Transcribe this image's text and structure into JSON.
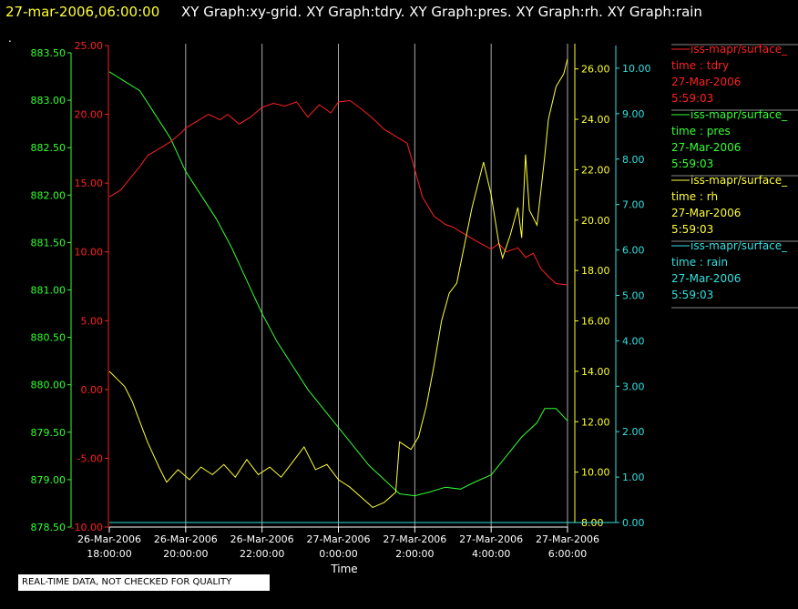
{
  "header": {
    "timestamp": "27-mar-2006,06:00:00",
    "titles": "XY Graph:xy-grid.  XY Graph:tdry.  XY Graph:pres.  XY Graph:rh.  XY Graph:rain",
    "dot": "."
  },
  "footer": {
    "quality_note": "REAL-TIME DATA, NOT CHECKED FOR QUALITY"
  },
  "colors": {
    "tdry": "#ff2020",
    "pres": "#33ff33",
    "rh": "#ffff33",
    "rain": "#33e0e0",
    "grid": "#aaaaaa",
    "background": "#000000"
  },
  "chart_data": {
    "type": "line",
    "xlabel": "Time",
    "x_ticks": [
      {
        "date": "26-Mar-2006",
        "time": "18:00:00"
      },
      {
        "date": "26-Mar-2006",
        "time": "20:00:00"
      },
      {
        "date": "26-Mar-2006",
        "time": "22:00:00"
      },
      {
        "date": "27-Mar-2006",
        "time": "0:00:00"
      },
      {
        "date": "27-Mar-2006",
        "time": "2:00:00"
      },
      {
        "date": "27-Mar-2006",
        "time": "4:00:00"
      },
      {
        "date": "27-Mar-2006",
        "time": "6:00:00"
      }
    ],
    "x_hours": [
      0,
      2,
      4,
      6,
      8,
      10,
      12
    ],
    "axes": {
      "pres": {
        "ylim": [
          878.5,
          883.5
        ],
        "ticks": [
          "878.50",
          "879.00",
          "879.50",
          "880.00",
          "880.50",
          "881.00",
          "881.50",
          "882.00",
          "882.50",
          "883.00",
          "883.50"
        ]
      },
      "tdry": {
        "ylim": [
          -10,
          25
        ],
        "ticks": [
          "-10.00",
          "-5.00",
          "0.00",
          "5.00",
          "10.00",
          "15.00",
          "20.00",
          "25.00"
        ]
      },
      "rh": {
        "ylim": [
          8,
          27
        ],
        "ticks": [
          "8.00",
          "10.00",
          "12.00",
          "14.00",
          "16.00",
          "18.00",
          "20.00",
          "22.00",
          "24.00",
          "26.00"
        ]
      },
      "rain": {
        "ylim": [
          0,
          10.5
        ],
        "ticks": [
          "0.00",
          "1.00",
          "2.00",
          "3.00",
          "4.00",
          "5.00",
          "6.00",
          "7.00",
          "8.00",
          "9.00",
          "10.00"
        ]
      }
    },
    "grid": true,
    "legend_position": "right",
    "series": [
      {
        "name": "iss-mapr/surface_",
        "var": "time : tdry",
        "date": "27-Mar-2006",
        "time": "5:59:03",
        "axis": "tdry",
        "points": [
          [
            0,
            14.0
          ],
          [
            0.3,
            14.5
          ],
          [
            0.5,
            15.2
          ],
          [
            0.8,
            16.2
          ],
          [
            1.0,
            17.0
          ],
          [
            1.3,
            17.5
          ],
          [
            1.6,
            18.0
          ],
          [
            1.9,
            18.7
          ],
          [
            2.0,
            19.0
          ],
          [
            2.3,
            19.5
          ],
          [
            2.6,
            20.0
          ],
          [
            2.9,
            19.6
          ],
          [
            3.1,
            20.0
          ],
          [
            3.4,
            19.3
          ],
          [
            3.7,
            19.8
          ],
          [
            4.0,
            20.5
          ],
          [
            4.3,
            20.8
          ],
          [
            4.6,
            20.6
          ],
          [
            4.9,
            20.9
          ],
          [
            5.2,
            19.8
          ],
          [
            5.5,
            20.7
          ],
          [
            5.8,
            20.1
          ],
          [
            6.0,
            20.9
          ],
          [
            6.3,
            21.0
          ],
          [
            6.6,
            20.4
          ],
          [
            6.9,
            19.7
          ],
          [
            7.2,
            18.9
          ],
          [
            7.5,
            18.4
          ],
          [
            7.8,
            17.9
          ],
          [
            8.0,
            16.0
          ],
          [
            8.2,
            14.0
          ],
          [
            8.5,
            12.6
          ],
          [
            8.8,
            12.0
          ],
          [
            9.0,
            11.8
          ],
          [
            9.3,
            11.3
          ],
          [
            9.6,
            10.8
          ],
          [
            10.0,
            10.2
          ],
          [
            10.2,
            10.6
          ],
          [
            10.4,
            10.0
          ],
          [
            10.7,
            10.3
          ],
          [
            10.9,
            9.6
          ],
          [
            11.1,
            9.9
          ],
          [
            11.3,
            8.8
          ],
          [
            11.5,
            8.2
          ],
          [
            11.7,
            7.7
          ],
          [
            12.0,
            7.6
          ]
        ]
      },
      {
        "name": "iss-mapr/surface_",
        "var": "time : pres",
        "date": "27-Mar-2006",
        "time": "5:59:03",
        "axis": "pres",
        "points": [
          [
            0,
            883.3
          ],
          [
            0.4,
            883.2
          ],
          [
            0.8,
            883.1
          ],
          [
            1.2,
            882.85
          ],
          [
            1.6,
            882.6
          ],
          [
            2.0,
            882.25
          ],
          [
            2.4,
            882.0
          ],
          [
            2.8,
            881.75
          ],
          [
            3.2,
            881.45
          ],
          [
            3.6,
            881.1
          ],
          [
            4.0,
            880.75
          ],
          [
            4.4,
            880.45
          ],
          [
            4.8,
            880.2
          ],
          [
            5.2,
            879.95
          ],
          [
            5.6,
            879.75
          ],
          [
            6.0,
            879.55
          ],
          [
            6.4,
            879.35
          ],
          [
            6.8,
            879.15
          ],
          [
            7.2,
            879.0
          ],
          [
            7.6,
            878.85
          ],
          [
            8.0,
            878.83
          ],
          [
            8.4,
            878.87
          ],
          [
            8.8,
            878.92
          ],
          [
            9.2,
            878.9
          ],
          [
            9.6,
            878.98
          ],
          [
            10.0,
            879.05
          ],
          [
            10.4,
            879.25
          ],
          [
            10.8,
            879.45
          ],
          [
            11.2,
            879.6
          ],
          [
            11.4,
            879.75
          ],
          [
            11.7,
            879.75
          ],
          [
            12.0,
            879.62
          ]
        ]
      },
      {
        "name": "iss-mapr/surface_",
        "var": "time : rh",
        "date": "27-Mar-2006",
        "time": "5:59:03",
        "axis": "rh",
        "points": [
          [
            0,
            14.0
          ],
          [
            0.2,
            13.7
          ],
          [
            0.4,
            13.4
          ],
          [
            0.6,
            12.8
          ],
          [
            0.8,
            12.0
          ],
          [
            1.0,
            11.2
          ],
          [
            1.3,
            10.2
          ],
          [
            1.5,
            9.6
          ],
          [
            1.8,
            10.1
          ],
          [
            2.1,
            9.7
          ],
          [
            2.4,
            10.2
          ],
          [
            2.7,
            9.9
          ],
          [
            3.0,
            10.3
          ],
          [
            3.3,
            9.8
          ],
          [
            3.6,
            10.5
          ],
          [
            3.9,
            9.9
          ],
          [
            4.2,
            10.2
          ],
          [
            4.5,
            9.8
          ],
          [
            4.8,
            10.4
          ],
          [
            5.1,
            11.0
          ],
          [
            5.4,
            10.1
          ],
          [
            5.7,
            10.3
          ],
          [
            6.0,
            9.7
          ],
          [
            6.3,
            9.4
          ],
          [
            6.6,
            9.0
          ],
          [
            6.9,
            8.6
          ],
          [
            7.2,
            8.8
          ],
          [
            7.5,
            9.2
          ],
          [
            7.6,
            11.2
          ],
          [
            7.9,
            10.9
          ],
          [
            8.1,
            11.4
          ],
          [
            8.3,
            12.6
          ],
          [
            8.5,
            14.2
          ],
          [
            8.7,
            16.0
          ],
          [
            8.9,
            17.1
          ],
          [
            9.1,
            17.5
          ],
          [
            9.3,
            19.0
          ],
          [
            9.5,
            20.5
          ],
          [
            9.7,
            21.7
          ],
          [
            9.8,
            22.3
          ],
          [
            10.0,
            21.0
          ],
          [
            10.2,
            19.1
          ],
          [
            10.3,
            18.5
          ],
          [
            10.5,
            19.4
          ],
          [
            10.7,
            20.5
          ],
          [
            10.8,
            19.3
          ],
          [
            10.9,
            22.6
          ],
          [
            11.0,
            20.4
          ],
          [
            11.2,
            19.8
          ],
          [
            11.4,
            22.5
          ],
          [
            11.5,
            24.0
          ],
          [
            11.7,
            25.3
          ],
          [
            11.9,
            25.8
          ],
          [
            12.0,
            26.4
          ]
        ]
      },
      {
        "name": "iss-mapr/surface_",
        "var": "time : rain",
        "date": "27-Mar-2006",
        "time": "5:59:03",
        "axis": "rain",
        "points": [
          [
            0,
            0.0
          ],
          [
            12,
            0.0
          ]
        ]
      }
    ]
  }
}
